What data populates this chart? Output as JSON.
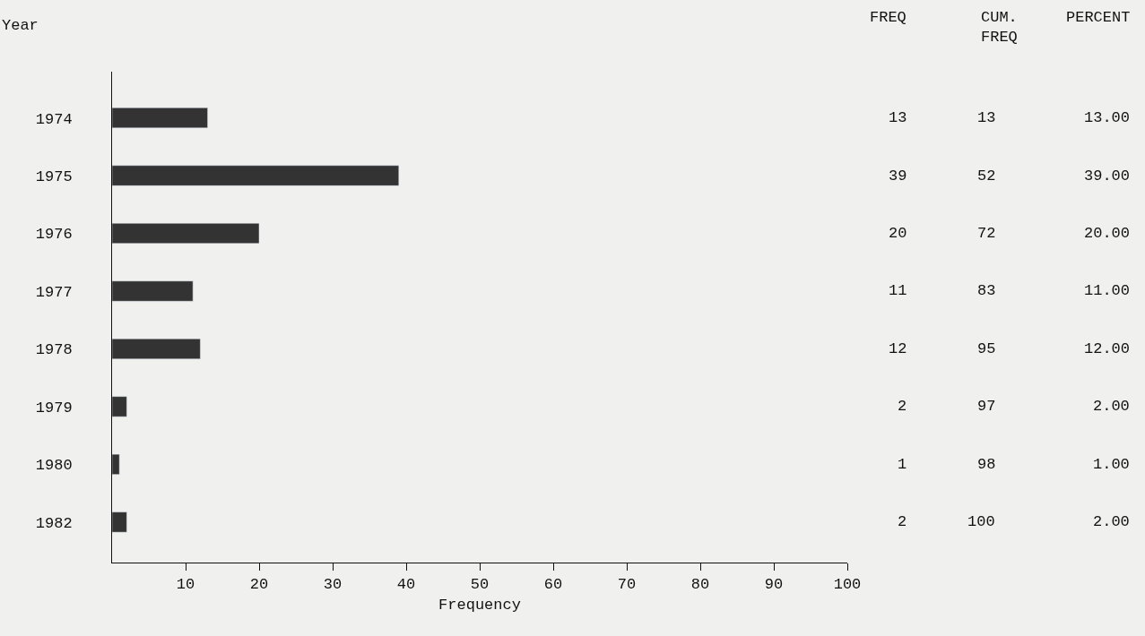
{
  "chart_data": {
    "type": "bar",
    "orientation": "horizontal",
    "categories": [
      "1974",
      "1975",
      "1976",
      "1977",
      "1978",
      "1979",
      "1980",
      "1982"
    ],
    "values": [
      13,
      39,
      20,
      11,
      12,
      2,
      1,
      2
    ],
    "color": "#333333",
    "xlim": [
      0,
      100
    ],
    "xticks": [
      10,
      20,
      30,
      40,
      50,
      60,
      70,
      80,
      90,
      100
    ],
    "xlabel": "Frequency",
    "ylabel": "Year",
    "data_labels": true,
    "annotations": [
      "FREQ",
      "CUM.\nFREQ",
      "PERCENT",
      "13",
      "13.00",
      "52",
      "39.00",
      "72",
      "20.00",
      "83",
      "11.00",
      "95",
      "12.00",
      "97",
      "2.00",
      "98",
      "1.00",
      "100",
      "2.00"
    ]
  }
}
